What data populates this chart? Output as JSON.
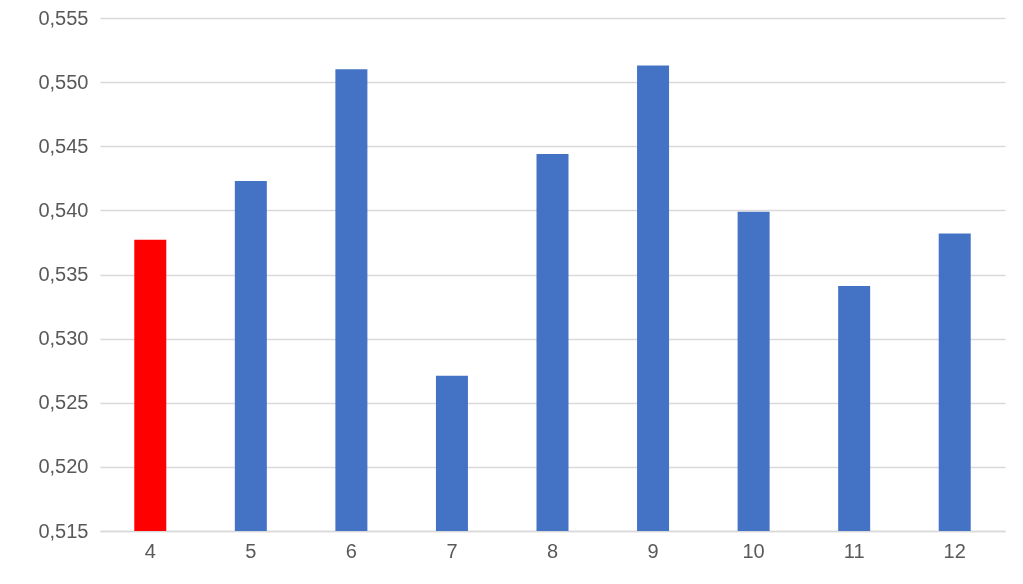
{
  "chart_data": {
    "type": "bar",
    "categories": [
      "4",
      "5",
      "6",
      "7",
      "8",
      "9",
      "10",
      "11",
      "12"
    ],
    "values": [
      0.5377,
      0.5423,
      0.551,
      0.5271,
      0.5444,
      0.5513,
      0.5399,
      0.5341,
      0.5382
    ],
    "colors": [
      "#ff0000",
      "#4472c4",
      "#4472c4",
      "#4472c4",
      "#4472c4",
      "#4472c4",
      "#4472c4",
      "#4472c4",
      "#4472c4"
    ],
    "ylim": [
      0.515,
      0.555
    ],
    "yticks": [
      {
        "value": 0.515,
        "label": "0,515"
      },
      {
        "value": 0.52,
        "label": "0,520"
      },
      {
        "value": 0.525,
        "label": "0,525"
      },
      {
        "value": 0.53,
        "label": "0,530"
      },
      {
        "value": 0.535,
        "label": "0,535"
      },
      {
        "value": 0.54,
        "label": "0,540"
      },
      {
        "value": 0.545,
        "label": "0,545"
      },
      {
        "value": 0.55,
        "label": "0,550"
      },
      {
        "value": 0.555,
        "label": "0,555"
      }
    ],
    "grid": "y"
  }
}
